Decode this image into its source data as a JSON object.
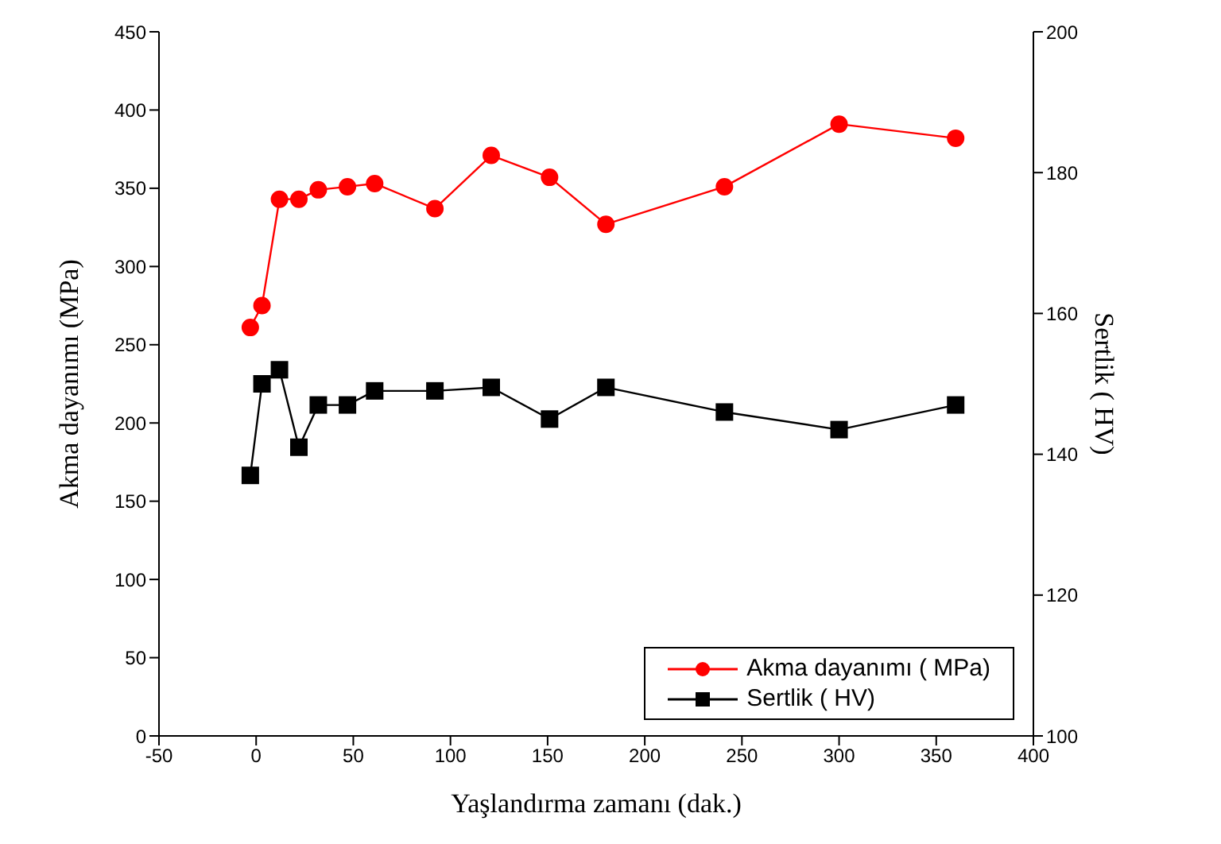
{
  "chart_data": {
    "type": "line",
    "xlabel": "Yaşlandırma zamanı (dak.)",
    "ylabel": "Akma dayanımı (MPa)",
    "y2label": "Sertlik ( HV)",
    "x": [
      -3,
      3,
      12,
      22,
      32,
      47,
      61,
      92,
      121,
      151,
      180,
      241,
      300,
      360
    ],
    "series": [
      {
        "name": "Akma dayanımı ( MPa)",
        "color": "#ff0000",
        "marker": "circle",
        "values": [
          261,
          275,
          343,
          343,
          349,
          351,
          353,
          337,
          371,
          357,
          327,
          351,
          391,
          382
        ]
      },
      {
        "name": "Sertlik ( HV)",
        "color": "#000000",
        "marker": "square",
        "axis": "y2",
        "values": [
          137,
          150,
          152,
          141,
          147,
          147,
          149,
          149,
          149.5,
          145,
          149.5,
          146,
          143.5,
          147
        ]
      }
    ],
    "xlim": [
      -50,
      400
    ],
    "xticks": [
      -50,
      0,
      50,
      100,
      150,
      200,
      250,
      300,
      350,
      400
    ],
    "ylim": [
      0,
      450
    ],
    "yticks": [
      0,
      50,
      100,
      150,
      200,
      250,
      300,
      350,
      400,
      450
    ],
    "y2lim": [
      100,
      200
    ],
    "y2ticks": [
      100,
      120,
      140,
      160,
      180,
      200
    ],
    "grid": false,
    "legend": "bottom right"
  }
}
